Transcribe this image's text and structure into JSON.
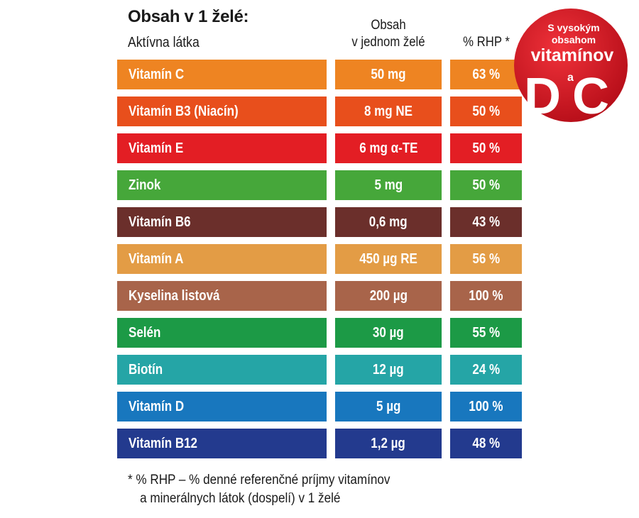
{
  "header": {
    "title": "Obsah v 1 želé:",
    "col1": "Aktívna látka",
    "col2_line1": "Obsah",
    "col2_line2": "v jednom želé",
    "col3": "% RHP *"
  },
  "rows": [
    {
      "name": "Vitamín C",
      "amount": "50 mg",
      "rhp": "63 %",
      "color": "#ee8422"
    },
    {
      "name": "Vitamín B3 (Niacín)",
      "amount": "8 mg  NE",
      "rhp": "50 %",
      "color": "#e84f1c"
    },
    {
      "name": "Vitamín E",
      "amount": "6 mg  α-TE",
      "rhp": "50 %",
      "color": "#e31e24"
    },
    {
      "name": "Zinok",
      "amount": "5 mg",
      "rhp": "50 %",
      "color": "#46a73a"
    },
    {
      "name": "Vitamín B6",
      "amount": "0,6  mg",
      "rhp": "43 %",
      "color": "#6b2f2b"
    },
    {
      "name": "Vitamín A",
      "amount": "450 µg  RE",
      "rhp": "56 %",
      "color": "#e39c45"
    },
    {
      "name": "Kyselina listová",
      "amount": "200 µg",
      "rhp": "100 %",
      "color": "#a8644a"
    },
    {
      "name": "Selén",
      "amount": "30 µg",
      "rhp": "55 %",
      "color": "#1c9a46"
    },
    {
      "name": "Biotín",
      "amount": "12 µg",
      "rhp": "24 %",
      "color": "#25a5a6"
    },
    {
      "name": "Vitamín D",
      "amount": "5 µg",
      "rhp": "100 %",
      "color": "#1877be"
    },
    {
      "name": "Vitamín B12",
      "amount": "1,2 µg",
      "rhp": "48 %",
      "color": "#233a8e"
    }
  ],
  "footnote": {
    "line1": "* % RHP – % denné referenčné príjmy vitamínov",
    "line2": "a minerálnych látok (dospelí) v 1 želé"
  },
  "badge": {
    "line1": "S vysokým",
    "line2": "obsahom",
    "line3": "vitamínov",
    "letter_d": "D",
    "conj": "a",
    "letter_c": "C",
    "color": "#d2141f"
  }
}
